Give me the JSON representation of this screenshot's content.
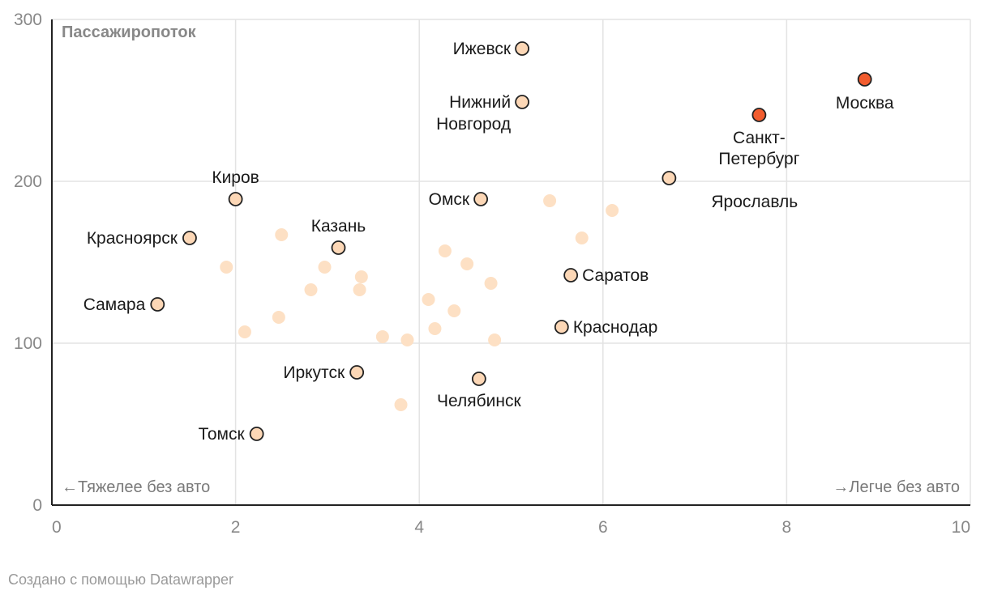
{
  "chart_data": {
    "type": "scatter",
    "title": "",
    "xlabel": "",
    "ylabel": "Пассажиропоток",
    "xlim": [
      0,
      10
    ],
    "ylim": [
      0,
      300
    ],
    "x_ticks": [
      "0",
      "2",
      "4",
      "6",
      "8",
      "10"
    ],
    "y_ticks": [
      "0",
      "100",
      "200",
      "300"
    ],
    "grid": true,
    "annotations": {
      "left": "←Тяжелее без авто",
      "right": "→Легче без авто"
    },
    "colors": {
      "highlight": "#f25c2e",
      "labeled": "#fcd7b6",
      "background": "#fde0c4",
      "outline": "#222222",
      "grid": "#e3e3e3"
    },
    "labeled_points": [
      {
        "label": "Москва",
        "x": 8.85,
        "y": 263,
        "highlight": true
      },
      {
        "label": "Санкт-Петербург",
        "x": 7.7,
        "y": 241,
        "highlight": true
      },
      {
        "label": "Ижевск",
        "x": 5.12,
        "y": 282,
        "highlight": false
      },
      {
        "label": "Нижний Новгород",
        "x": 5.12,
        "y": 249,
        "highlight": false
      },
      {
        "label": "Ярославль",
        "x": 6.72,
        "y": 202,
        "highlight": false
      },
      {
        "label": "Омск",
        "x": 4.67,
        "y": 189,
        "highlight": false
      },
      {
        "label": "Киров",
        "x": 2.0,
        "y": 189,
        "highlight": false
      },
      {
        "label": "Красноярск",
        "x": 1.5,
        "y": 165,
        "highlight": false
      },
      {
        "label": "Казань",
        "x": 3.12,
        "y": 159,
        "highlight": false
      },
      {
        "label": "Саратов",
        "x": 5.65,
        "y": 142,
        "highlight": false
      },
      {
        "label": "Самара",
        "x": 1.15,
        "y": 124,
        "highlight": false
      },
      {
        "label": "Краснодар",
        "x": 5.55,
        "y": 110,
        "highlight": false
      },
      {
        "label": "Иркутск",
        "x": 3.32,
        "y": 82,
        "highlight": false
      },
      {
        "label": "Челябинск",
        "x": 4.65,
        "y": 78,
        "highlight": false
      },
      {
        "label": "Томск",
        "x": 2.23,
        "y": 44,
        "highlight": false
      }
    ],
    "background_points": [
      {
        "x": 5.42,
        "y": 188
      },
      {
        "x": 6.1,
        "y": 182
      },
      {
        "x": 2.5,
        "y": 167
      },
      {
        "x": 5.77,
        "y": 165
      },
      {
        "x": 4.28,
        "y": 157
      },
      {
        "x": 4.52,
        "y": 149
      },
      {
        "x": 1.9,
        "y": 147
      },
      {
        "x": 2.97,
        "y": 147
      },
      {
        "x": 3.37,
        "y": 141
      },
      {
        "x": 4.78,
        "y": 137
      },
      {
        "x": 2.82,
        "y": 133
      },
      {
        "x": 3.35,
        "y": 133
      },
      {
        "x": 4.1,
        "y": 127
      },
      {
        "x": 4.38,
        "y": 120
      },
      {
        "x": 2.47,
        "y": 116
      },
      {
        "x": 2.1,
        "y": 107
      },
      {
        "x": 4.17,
        "y": 109
      },
      {
        "x": 3.6,
        "y": 104
      },
      {
        "x": 3.87,
        "y": 102
      },
      {
        "x": 4.82,
        "y": 102
      },
      {
        "x": 3.8,
        "y": 62
      }
    ]
  },
  "credit": "Создано с помощью Datawrapper"
}
